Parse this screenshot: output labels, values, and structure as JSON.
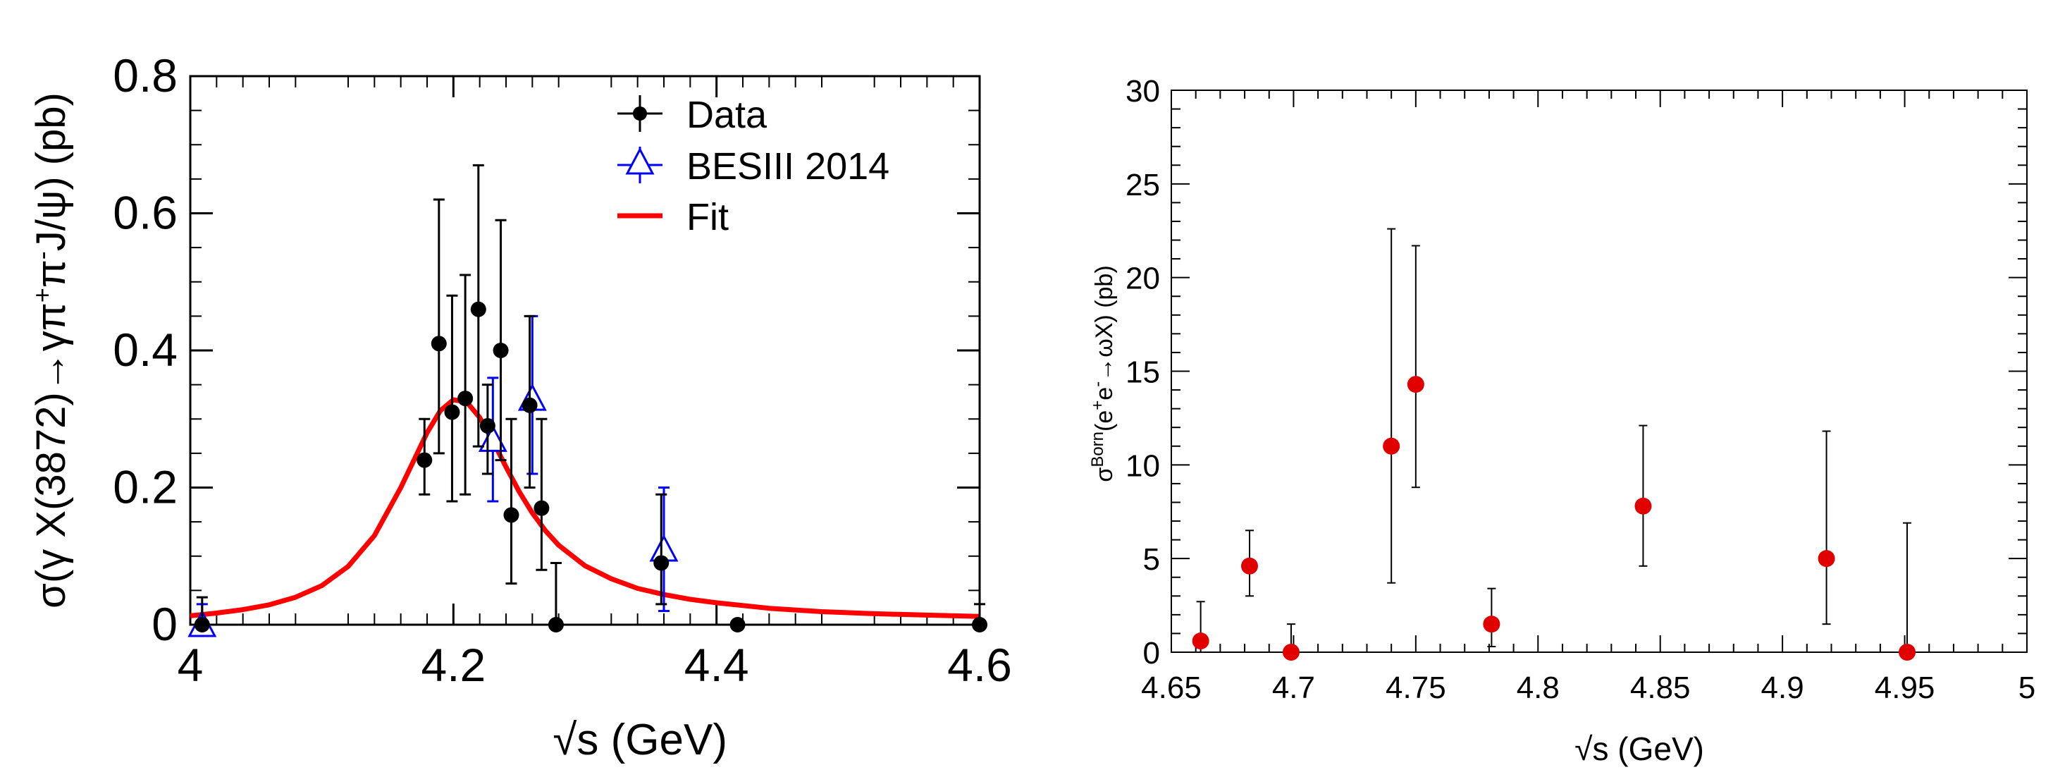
{
  "chart_data": [
    {
      "type": "scatter",
      "title": "",
      "xlabel": "√s (GeV)",
      "ylabel": "σ(γ X(3872)→γπ⁺π⁻J/ψ) (pb)",
      "ylabel_parts": {
        "main": "σ(γ X(3872)→γπ",
        "sup1": "+",
        "mid": "π",
        "sup2": "-",
        "end": "J/ψ) (pb)"
      },
      "xlim": [
        4.0,
        4.6
      ],
      "ylim": [
        0,
        0.8
      ],
      "xticks": [
        "4",
        "4.2",
        "4.4",
        "4.6"
      ],
      "xtick_values": [
        4.0,
        4.2,
        4.4,
        4.6
      ],
      "yticks": [
        "0",
        "0.2",
        "0.4",
        "0.6",
        "0.8"
      ],
      "ytick_values": [
        0,
        0.2,
        0.4,
        0.6,
        0.8
      ],
      "legend": [
        {
          "label": "Data",
          "color": "#000000",
          "marker": "circle"
        },
        {
          "label": "BESIII 2014",
          "color": "#0000ff",
          "marker": "open-triangle"
        },
        {
          "label": "Fit",
          "color": "#ff0000",
          "marker": "line"
        }
      ],
      "legend_position": "top-right",
      "series": [
        {
          "name": "Data",
          "color": "#000000",
          "points": [
            {
              "x": 4.009,
              "y": 0.0,
              "lo": 0.0,
              "hi": 0.04
            },
            {
              "x": 4.178,
              "y": 0.24,
              "lo": 0.19,
              "hi": 0.3
            },
            {
              "x": 4.189,
              "y": 0.41,
              "lo": 0.25,
              "hi": 0.62
            },
            {
              "x": 4.199,
              "y": 0.31,
              "lo": 0.18,
              "hi": 0.48
            },
            {
              "x": 4.209,
              "y": 0.33,
              "lo": 0.19,
              "hi": 0.51
            },
            {
              "x": 4.219,
              "y": 0.46,
              "lo": 0.26,
              "hi": 0.67
            },
            {
              "x": 4.226,
              "y": 0.29,
              "lo": 0.22,
              "hi": 0.35
            },
            {
              "x": 4.236,
              "y": 0.4,
              "lo": 0.24,
              "hi": 0.59
            },
            {
              "x": 4.244,
              "y": 0.16,
              "lo": 0.06,
              "hi": 0.3
            },
            {
              "x": 4.258,
              "y": 0.32,
              "lo": 0.2,
              "hi": 0.45
            },
            {
              "x": 4.267,
              "y": 0.17,
              "lo": 0.08,
              "hi": 0.3
            },
            {
              "x": 4.278,
              "y": 0.0,
              "lo": 0.0,
              "hi": 0.09
            },
            {
              "x": 4.358,
              "y": 0.09,
              "lo": 0.03,
              "hi": 0.19
            },
            {
              "x": 4.416,
              "y": 0.0,
              "lo": 0.0,
              "hi": 0.0
            },
            {
              "x": 4.6,
              "y": 0.0,
              "lo": 0.0,
              "hi": 0.03
            }
          ]
        },
        {
          "name": "BESIII 2014",
          "color": "#0000ff",
          "points": [
            {
              "x": 4.009,
              "y": 0.0,
              "lo": 0.0,
              "hi": 0.03
            },
            {
              "x": 4.23,
              "y": 0.27,
              "lo": 0.18,
              "hi": 0.36
            },
            {
              "x": 4.26,
              "y": 0.33,
              "lo": 0.22,
              "hi": 0.45
            },
            {
              "x": 4.36,
              "y": 0.11,
              "lo": 0.02,
              "hi": 0.2
            }
          ]
        },
        {
          "name": "Fit",
          "color": "#ff0000",
          "type": "line",
          "x": [
            4.0,
            4.02,
            4.04,
            4.06,
            4.08,
            4.1,
            4.12,
            4.14,
            4.16,
            4.18,
            4.19,
            4.2,
            4.21,
            4.22,
            4.23,
            4.24,
            4.25,
            4.26,
            4.27,
            4.28,
            4.3,
            4.32,
            4.34,
            4.36,
            4.38,
            4.4,
            4.44,
            4.48,
            4.52,
            4.56,
            4.6
          ],
          "y": [
            0.013,
            0.017,
            0.022,
            0.029,
            0.04,
            0.057,
            0.085,
            0.13,
            0.2,
            0.28,
            0.312,
            0.328,
            0.325,
            0.302,
            0.268,
            0.23,
            0.194,
            0.163,
            0.137,
            0.116,
            0.086,
            0.067,
            0.053,
            0.044,
            0.037,
            0.032,
            0.024,
            0.019,
            0.016,
            0.014,
            0.012
          ]
        }
      ]
    },
    {
      "type": "scatter",
      "title": "",
      "xlabel": "√s (GeV)",
      "ylabel": "σ^Born(e⁺e⁻→ωX) (pb)",
      "ylabel_parts": {
        "main": "σ",
        "sup1": "Born",
        "mid": "(e",
        "sup2": "+",
        "mid2": "e",
        "sup3": "-",
        "end": "→ωX) (pb)"
      },
      "xlim": [
        4.65,
        5.0
      ],
      "ylim": [
        0,
        30
      ],
      "xticks": [
        "4.65",
        "4.7",
        "4.75",
        "4.8",
        "4.85",
        "4.9",
        "4.95",
        "5"
      ],
      "xtick_values": [
        4.65,
        4.7,
        4.75,
        4.8,
        4.85,
        4.9,
        4.95,
        5.0
      ],
      "yticks": [
        "0",
        "5",
        "10",
        "15",
        "20",
        "25",
        "30"
      ],
      "ytick_values": [
        0,
        5,
        10,
        15,
        20,
        25,
        30
      ],
      "series": [
        {
          "name": "Data",
          "color": "#ff0000",
          "points": [
            {
              "x": 4.662,
              "y": 0.6,
              "lo": 0.0,
              "hi": 2.7
            },
            {
              "x": 4.682,
              "y": 4.6,
              "lo": 3.0,
              "hi": 6.5
            },
            {
              "x": 4.699,
              "y": 0.0,
              "lo": 0.0,
              "hi": 1.5
            },
            {
              "x": 4.74,
              "y": 11.0,
              "lo": 3.7,
              "hi": 22.6
            },
            {
              "x": 4.75,
              "y": 14.3,
              "lo": 8.8,
              "hi": 21.7
            },
            {
              "x": 4.781,
              "y": 1.5,
              "lo": 0.3,
              "hi": 3.4
            },
            {
              "x": 4.843,
              "y": 7.8,
              "lo": 4.6,
              "hi": 12.1
            },
            {
              "x": 4.918,
              "y": 5.0,
              "lo": 1.5,
              "hi": 11.8
            },
            {
              "x": 4.951,
              "y": 0.0,
              "lo": 0.0,
              "hi": 6.9
            }
          ]
        }
      ]
    }
  ]
}
